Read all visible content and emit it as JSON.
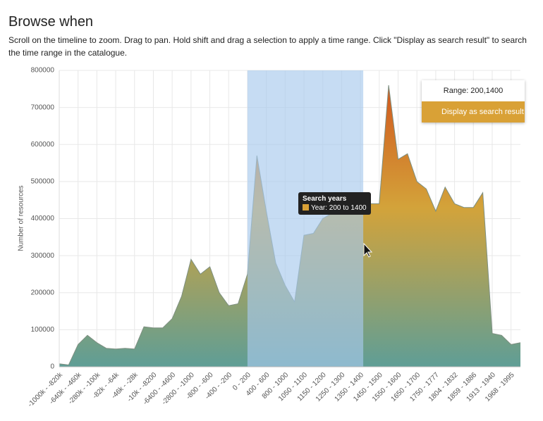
{
  "header": {
    "title": "Browse when",
    "description": "Scroll on the timeline to zoom. Drag to pan. Hold shift and drag a selection to apply a time range. Click \"Display as search result\" to search the time range in the catalogue."
  },
  "chart_data": {
    "type": "area",
    "ylabel": "Number of resources",
    "categories": [
      "-1000k - -820k",
      null,
      "-640k - -460k",
      null,
      "-280k - -100k",
      null,
      "-82k - -64k",
      null,
      "-46k - -28k",
      null,
      "-10k - -8200",
      null,
      "-6400 - -4600",
      null,
      "-2800 - -1000",
      null,
      "-800 - -600",
      null,
      "-400 - -200",
      null,
      "0 - 200",
      null,
      "400 - 600",
      null,
      "800 - 1000",
      null,
      "1050 - 1100",
      null,
      "1150 - 1200",
      null,
      "1250 - 1300",
      null,
      "1350 - 1400",
      null,
      "1450 - 1500",
      null,
      "1550 - 1600",
      null,
      "1650 - 1700",
      null,
      "1750 - 1777",
      null,
      "1804 - 1832",
      null,
      "1859 - 1886",
      null,
      "1913 - 1940",
      null,
      "1968 - 1995",
      null
    ],
    "values": [
      8000,
      5000,
      60000,
      85000,
      65000,
      50000,
      48000,
      50000,
      48000,
      108000,
      105000,
      105000,
      130000,
      190000,
      290000,
      250000,
      270000,
      200000,
      165000,
      170000,
      250000,
      570000,
      420000,
      280000,
      220000,
      175000,
      355000,
      360000,
      400000,
      415000,
      420000,
      425000,
      430000,
      440000,
      440000,
      760000,
      560000,
      575000,
      500000,
      480000,
      420000,
      485000,
      440000,
      430000,
      430000,
      470000,
      90000,
      85000,
      60000,
      65000
    ],
    "ylim": [
      0,
      800000
    ],
    "yticks": [
      0,
      100000,
      200000,
      300000,
      400000,
      500000,
      600000,
      700000,
      800000
    ],
    "grid": true,
    "selection": {
      "start": 20,
      "end": 32
    },
    "tooltip": {
      "title": "Search years",
      "text": "Year: 200 to 1400"
    },
    "range_popup": {
      "text": "Range: 200,1400",
      "button": "Display as search result"
    }
  }
}
